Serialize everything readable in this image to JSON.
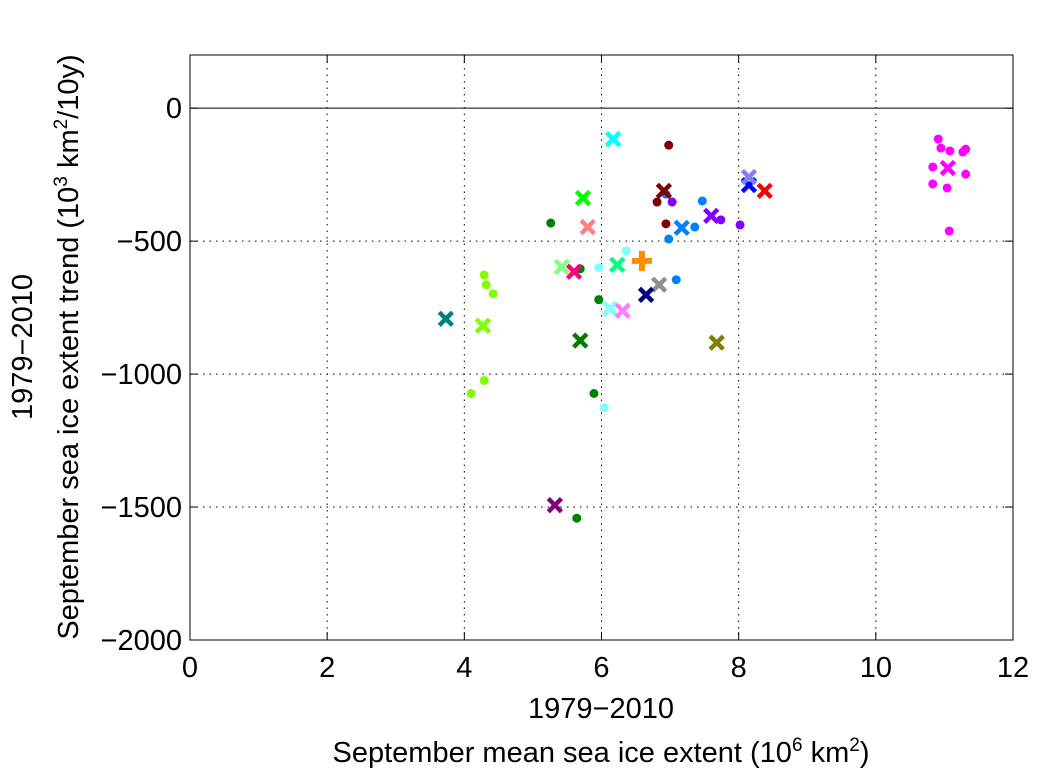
{
  "chart_data": {
    "type": "scatter",
    "title": "",
    "xlabel_line1": "1979−2010",
    "xlabel_parts": [
      "September mean sea ice extent (10",
      "6",
      " km",
      "2",
      ")"
    ],
    "ylabel_line1": "1979−2010",
    "ylabel_parts": [
      "September sea ice extent trend (10",
      "3",
      " km",
      "2",
      "/10y)"
    ],
    "xlim": [
      0,
      12
    ],
    "ylim": [
      -2000,
      200
    ],
    "xticks": [
      0,
      2,
      4,
      6,
      8,
      10,
      12
    ],
    "xtick_labels": [
      "0",
      "2",
      "4",
      "6",
      "8",
      "10",
      "12"
    ],
    "yticks": [
      -2000,
      -1500,
      -1000,
      -500,
      0
    ],
    "ytick_labels": [
      "−2000",
      "−1500",
      "−1000",
      "−500",
      "0"
    ],
    "grid": true,
    "zero_line": true,
    "points": [
      {
        "x": 6.17,
        "y": -116,
        "marker": "x",
        "color": "#00ffff"
      },
      {
        "x": 6.98,
        "y": -139,
        "marker": "o",
        "color": "#800000"
      },
      {
        "x": 6.94,
        "y": -323,
        "marker": "o",
        "color": "#0080ff"
      },
      {
        "x": 6.91,
        "y": -311,
        "marker": "x",
        "color": "#800000"
      },
      {
        "x": 6.81,
        "y": -353,
        "marker": "o",
        "color": "#800000"
      },
      {
        "x": 7.03,
        "y": -353,
        "marker": "o",
        "color": "#8000ff"
      },
      {
        "x": 7.47,
        "y": -349,
        "marker": "o",
        "color": "#0080ff"
      },
      {
        "x": 6.94,
        "y": -435,
        "marker": "o",
        "color": "#800000"
      },
      {
        "x": 7.17,
        "y": -450,
        "marker": "x",
        "color": "#0080ff"
      },
      {
        "x": 7.36,
        "y": -447,
        "marker": "o",
        "color": "#0080ff"
      },
      {
        "x": 7.6,
        "y": -405,
        "marker": "x",
        "color": "#8000ff"
      },
      {
        "x": 7.74,
        "y": -420,
        "marker": "o",
        "color": "#8000ff"
      },
      {
        "x": 8.02,
        "y": -439,
        "marker": "o",
        "color": "#8000ff"
      },
      {
        "x": 6.98,
        "y": -492,
        "marker": "o",
        "color": "#0080ff"
      },
      {
        "x": 8.15,
        "y": -289,
        "marker": "x",
        "color": "#0000ff"
      },
      {
        "x": 8.15,
        "y": -259,
        "marker": "x",
        "color": "#8080ff"
      },
      {
        "x": 8.38,
        "y": -311,
        "marker": "x",
        "color": "#ff0000"
      },
      {
        "x": 5.73,
        "y": -338,
        "marker": "x",
        "color": "#00ff00"
      },
      {
        "x": 5.26,
        "y": -432,
        "marker": "o",
        "color": "#008000"
      },
      {
        "x": 5.8,
        "y": -447,
        "marker": "x",
        "color": "#ff8080"
      },
      {
        "x": 6.36,
        "y": -537,
        "marker": "o",
        "color": "#80ffff"
      },
      {
        "x": 6.23,
        "y": -589,
        "marker": "x",
        "color": "#00ff80"
      },
      {
        "x": 5.96,
        "y": -600,
        "marker": "o",
        "color": "#80ffff"
      },
      {
        "x": 5.42,
        "y": -597,
        "marker": "x",
        "color": "#80ff80"
      },
      {
        "x": 5.69,
        "y": -604,
        "marker": "o",
        "color": "#008000"
      },
      {
        "x": 5.6,
        "y": -615,
        "marker": "x",
        "color": "#ff0080"
      },
      {
        "x": 7.09,
        "y": -645,
        "marker": "o",
        "color": "#0080ff"
      },
      {
        "x": 6.84,
        "y": -664,
        "marker": "x",
        "color": "#909090"
      },
      {
        "x": 6.65,
        "y": -702,
        "marker": "x",
        "color": "#000080"
      },
      {
        "x": 5.96,
        "y": -720,
        "marker": "o",
        "color": "#008000"
      },
      {
        "x": 6.12,
        "y": -754,
        "marker": "x",
        "color": "#80ffff"
      },
      {
        "x": 6.31,
        "y": -762,
        "marker": "x",
        "color": "#ff80ff"
      },
      {
        "x": 4.29,
        "y": -627,
        "marker": "o",
        "color": "#80ff00"
      },
      {
        "x": 4.32,
        "y": -664,
        "marker": "o",
        "color": "#80ff00"
      },
      {
        "x": 4.42,
        "y": -698,
        "marker": "o",
        "color": "#80ff00"
      },
      {
        "x": 3.73,
        "y": -792,
        "marker": "x",
        "color": "#008080"
      },
      {
        "x": 4.27,
        "y": -818,
        "marker": "x",
        "color": "#80ff00"
      },
      {
        "x": 5.69,
        "y": -874,
        "marker": "x",
        "color": "#008000"
      },
      {
        "x": 7.68,
        "y": -882,
        "marker": "x",
        "color": "#808000"
      },
      {
        "x": 4.29,
        "y": -1024,
        "marker": "o",
        "color": "#80ff00"
      },
      {
        "x": 4.1,
        "y": -1073,
        "marker": "o",
        "color": "#80ff00"
      },
      {
        "x": 5.89,
        "y": -1073,
        "marker": "o",
        "color": "#008000"
      },
      {
        "x": 6.04,
        "y": -1126,
        "marker": "o",
        "color": "#80ffff"
      },
      {
        "x": 5.32,
        "y": -1493,
        "marker": "x",
        "color": "#800080"
      },
      {
        "x": 5.64,
        "y": -1542,
        "marker": "o",
        "color": "#008000"
      },
      {
        "x": 10.91,
        "y": -116,
        "marker": "o",
        "color": "#ff00ff"
      },
      {
        "x": 10.95,
        "y": -150,
        "marker": "o",
        "color": "#ff00ff"
      },
      {
        "x": 11.08,
        "y": -161,
        "marker": "o",
        "color": "#ff00ff"
      },
      {
        "x": 11.27,
        "y": -165,
        "marker": "o",
        "color": "#ff00ff"
      },
      {
        "x": 11.31,
        "y": -154,
        "marker": "o",
        "color": "#ff00ff"
      },
      {
        "x": 10.83,
        "y": -221,
        "marker": "o",
        "color": "#ff00ff"
      },
      {
        "x": 11.05,
        "y": -225,
        "marker": "x",
        "color": "#ff00ff"
      },
      {
        "x": 11.31,
        "y": -248,
        "marker": "o",
        "color": "#ff00ff"
      },
      {
        "x": 10.83,
        "y": -285,
        "marker": "o",
        "color": "#ff00ff"
      },
      {
        "x": 11.04,
        "y": -300,
        "marker": "o",
        "color": "#ff00ff"
      },
      {
        "x": 11.07,
        "y": -462,
        "marker": "o",
        "color": "#ff00ff"
      },
      {
        "x": 6.59,
        "y": -574,
        "marker": "+",
        "color": "#ff8c00"
      }
    ]
  }
}
